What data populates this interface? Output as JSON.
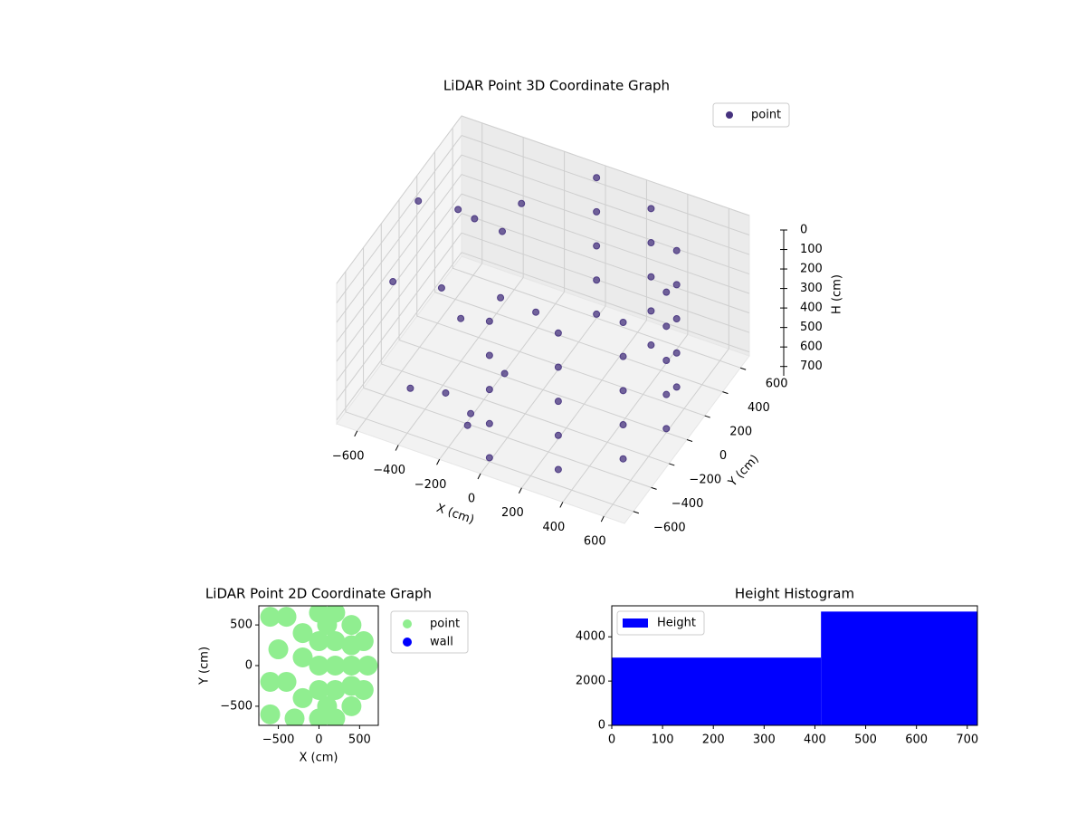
{
  "chart_data": [
    {
      "type": "scatter3d",
      "title": "LiDAR Point 3D Coordinate Graph",
      "xlabel": "X (cm)",
      "ylabel": "Y (cm)",
      "zlabel": "H (cm)",
      "xlim": [
        -700,
        700
      ],
      "ylim": [
        -700,
        700
      ],
      "zlim": [
        720,
        0
      ],
      "xticks": [
        {
          "value": -600,
          "label": "−600"
        },
        {
          "value": -400,
          "label": "−400"
        },
        {
          "value": -200,
          "label": "−200"
        },
        0,
        200,
        400,
        600
      ],
      "yticks": [
        {
          "value": -600,
          "label": "−600"
        },
        {
          "value": -400,
          "label": "−400"
        },
        {
          "value": -200,
          "label": "−200"
        },
        0,
        200,
        400,
        600
      ],
      "zticks": [
        0,
        100,
        200,
        300,
        400,
        500,
        600,
        700
      ],
      "grid": true,
      "legend": "upper right",
      "series": [
        {
          "name": "point",
          "color": "#46327e",
          "x": [
            0,
            300,
            520,
            600,
            520,
            300,
            0,
            0,
            300,
            520,
            600,
            520,
            300,
            0,
            0,
            300,
            520,
            600,
            520,
            300,
            0,
            0,
            300,
            520,
            600,
            520,
            300,
            0,
            0,
            300,
            520,
            600,
            520,
            300,
            0,
            -600,
            -450,
            -300,
            -150,
            -500,
            -350,
            -250,
            -100,
            -550,
            -400,
            -200,
            -300,
            -100,
            -450,
            -650
          ],
          "y": [
            -600,
            -520,
            -300,
            0,
            300,
            520,
            600,
            -600,
            -520,
            -300,
            0,
            300,
            520,
            600,
            -600,
            -520,
            -300,
            0,
            300,
            520,
            600,
            -600,
            -520,
            -300,
            0,
            300,
            520,
            600,
            -600,
            -520,
            -300,
            0,
            300,
            520,
            600,
            -300,
            -100,
            -400,
            -500,
            200,
            350,
            100,
            -200,
            500,
            0,
            -350,
            450,
            150,
            -450,
            100
          ],
          "z": [
            0,
            0,
            0,
            0,
            0,
            0,
            0,
            175,
            175,
            175,
            175,
            175,
            175,
            175,
            350,
            350,
            350,
            350,
            350,
            350,
            350,
            525,
            525,
            525,
            525,
            525,
            525,
            525,
            700,
            700,
            700,
            700,
            700,
            700,
            700,
            200,
            300,
            600,
            650,
            100,
            250,
            400,
            550,
            350,
            500,
            700,
            150,
            450,
            600,
            50
          ]
        }
      ]
    },
    {
      "type": "scatter",
      "title": "LiDAR Point 2D Coordinate Graph",
      "xlabel": "X (cm)",
      "ylabel": "Y (cm)",
      "xlim": [
        -740,
        730
      ],
      "ylim": [
        -735,
        735
      ],
      "xticks": [
        {
          "value": -500,
          "label": "−500"
        },
        0,
        500
      ],
      "yticks": [
        {
          "value": -500,
          "label": "−500"
        },
        0,
        500
      ],
      "legend": "outside right",
      "series": [
        {
          "name": "point",
          "color": "#90ee90",
          "x": [
            600,
            550,
            550,
            400,
            400,
            200,
            200,
            0,
            0,
            400,
            400,
            400,
            200,
            200,
            200,
            0,
            0,
            0,
            -200,
            -200,
            -200,
            -400,
            -400,
            -600,
            -600,
            -600,
            -500,
            -300,
            100,
            100
          ],
          "y": [
            0,
            300,
            -300,
            500,
            -500,
            650,
            -650,
            650,
            -650,
            0,
            250,
            -250,
            0,
            300,
            -300,
            0,
            300,
            -300,
            400,
            -400,
            100,
            600,
            -200,
            600,
            -200,
            -600,
            200,
            -650,
            500,
            -500
          ]
        },
        {
          "name": "wall",
          "color": "#0000ff",
          "x": [],
          "y": []
        }
      ]
    },
    {
      "type": "histogram",
      "title": "Height Histogram",
      "name": "Height",
      "color": "#0000ff",
      "bins": [
        0,
        412,
        720
      ],
      "counts": [
        3060,
        5140
      ],
      "xlim": [
        0,
        720
      ],
      "ylim": [
        0,
        5400
      ],
      "xticks": [
        0,
        100,
        200,
        300,
        400,
        500,
        600,
        700
      ],
      "yticks": [
        0,
        2000,
        4000
      ],
      "legend": "upper left"
    }
  ]
}
